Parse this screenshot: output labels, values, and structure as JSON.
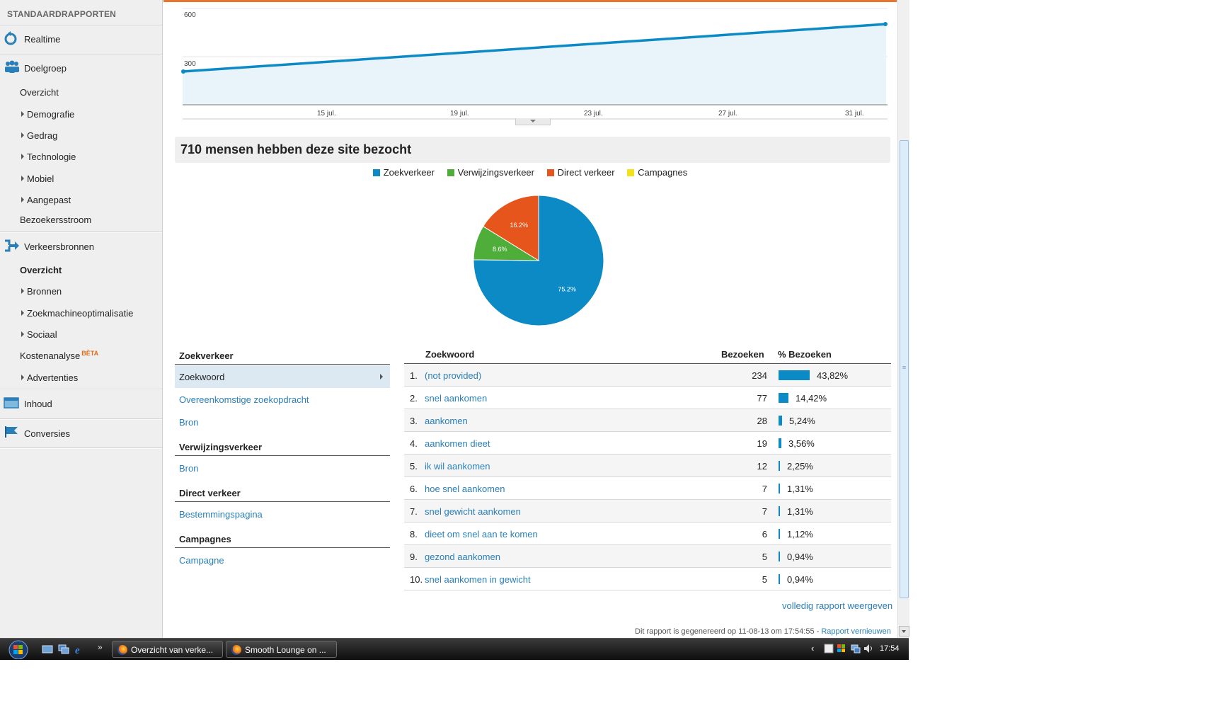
{
  "sidebar": {
    "title": "STANDAARDRAPPORTEN",
    "realtime": "Realtime",
    "doelgroep": "Doelgroep",
    "doelgroep_items": [
      "Overzicht",
      "Demografie",
      "Gedrag",
      "Technologie",
      "Mobiel",
      "Aangepast",
      "Bezoekersstroom"
    ],
    "verkeersbronnen": "Verkeersbronnen",
    "verkeer_items": [
      "Overzicht",
      "Bronnen",
      "Zoekmachineoptimalisatie",
      "Sociaal",
      "Kostenanalyse",
      "Advertenties"
    ],
    "beta_label": "BÈTA",
    "inhoud": "Inhoud",
    "conversies": "Conversies"
  },
  "line_chart": {
    "y_ticks": [
      "600",
      "300"
    ],
    "x_ticks": [
      "15 jul.",
      "19 jul.",
      "23 jul.",
      "27 jul.",
      "31 jul."
    ]
  },
  "headline": "710 mensen hebben deze site bezocht",
  "chart_data": {
    "type": "pie",
    "title": "",
    "legend": [
      "Zoekverkeer",
      "Verwijzingsverkeer",
      "Direct verkeer",
      "Campagnes"
    ],
    "colors": [
      "#0b8ac6",
      "#4fae3a",
      "#e6561c",
      "#f2e21a"
    ],
    "values": [
      75.2,
      8.6,
      16.2,
      0
    ],
    "labels": [
      "75.2%",
      "8.6%",
      "16.2%",
      ""
    ]
  },
  "left_panel": {
    "zoekverkeer": "Zoekverkeer",
    "zoekwoord": "Zoekwoord",
    "overeenkomstig": "Overeenkomstige zoekopdracht",
    "bron1": "Bron",
    "verwijzingsverkeer": "Verwijzingsverkeer",
    "bron2": "Bron",
    "direct": "Direct verkeer",
    "bestemming": "Bestemmingspagina",
    "campagnes": "Campagnes",
    "campagne": "Campagne"
  },
  "table": {
    "col_keyword": "Zoekwoord",
    "col_visits": "Bezoeken",
    "col_pct": "% Bezoeken",
    "rows": [
      {
        "n": "1.",
        "kw": "(not provided)",
        "v": "234",
        "pct": "43,82%",
        "frac": 0.4382
      },
      {
        "n": "2.",
        "kw": "snel aankomen",
        "v": "77",
        "pct": "14,42%",
        "frac": 0.1442
      },
      {
        "n": "3.",
        "kw": "aankomen",
        "v": "28",
        "pct": "5,24%",
        "frac": 0.0524
      },
      {
        "n": "4.",
        "kw": "aankomen dieet",
        "v": "19",
        "pct": "3,56%",
        "frac": 0.0356
      },
      {
        "n": "5.",
        "kw": "ik wil aankomen",
        "v": "12",
        "pct": "2,25%",
        "frac": 0.0225
      },
      {
        "n": "6.",
        "kw": "hoe snel aankomen",
        "v": "7",
        "pct": "1,31%",
        "frac": 0.0131
      },
      {
        "n": "7.",
        "kw": "snel gewicht aankomen",
        "v": "7",
        "pct": "1,31%",
        "frac": 0.0131
      },
      {
        "n": "8.",
        "kw": "dieet om snel aan te komen",
        "v": "6",
        "pct": "1,12%",
        "frac": 0.0112
      },
      {
        "n": "9.",
        "kw": "gezond aankomen",
        "v": "5",
        "pct": "0,94%",
        "frac": 0.0094
      },
      {
        "n": "10.",
        "kw": "snel aankomen in gewicht",
        "v": "5",
        "pct": "0,94%",
        "frac": 0.0094
      }
    ]
  },
  "full_report": "volledig rapport weergeven",
  "generated": "Dit rapport is gegenereerd op 11-08-13 om 17:54:55 -",
  "refresh": "Rapport vernieuwen",
  "taskbar": {
    "tasks": [
      "Overzicht van verke...",
      "Smooth Lounge on ..."
    ],
    "clock": "17:54"
  }
}
